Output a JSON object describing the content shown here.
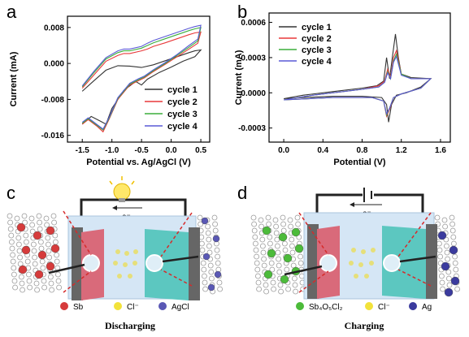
{
  "panels": {
    "a": {
      "letter": "a"
    },
    "b": {
      "letter": "b"
    },
    "c": {
      "letter": "c",
      "caption": "Discharging",
      "electron": "e⁻",
      "legend": [
        "Sb",
        "Cl⁻",
        "AgCl"
      ]
    },
    "d": {
      "letter": "d",
      "caption": "Charging",
      "electron": "e⁻",
      "legend": [
        "Sb₄O₅Cl₂",
        "Cl⁻",
        "Ag"
      ]
    }
  },
  "colors": {
    "cycle1": "#333333",
    "cycle2": "#e8393a",
    "cycle3": "#3cae3c",
    "cycle4": "#5a5ad6",
    "sb": "#d63b3b",
    "cl": "#f2e23a",
    "agcl": "#5a58b5",
    "sb4o5cl2": "#4cbb3a",
    "ag": "#3b3b9e",
    "electrode_red": "#d96a7a",
    "electrode_teal": "#5cc7c0",
    "electrolyte": "#d5e6f5"
  },
  "chart_data": [
    {
      "type": "line",
      "xlabel": "Potential vs. Ag/AgCl (V)",
      "ylabel": "Current (mA)",
      "xlim": [
        -1.75,
        0.65
      ],
      "ylim": [
        -0.0175,
        0.0105
      ],
      "xticks": [
        "-1.5",
        "-1.0",
        "-0.5",
        "0.0",
        "0.5"
      ],
      "xtick_values": [
        -1.5,
        -1.0,
        -0.5,
        0.0,
        0.5
      ],
      "yticks": [
        "0.008",
        "0.000",
        "-0.008",
        "-0.016"
      ],
      "ytick_values": [
        0.008,
        0.0,
        -0.008,
        -0.016
      ],
      "legend_position": "bottom-right",
      "series": [
        {
          "name": "cycle 1",
          "color": "#333333",
          "anodic": [
            [
              -1.5,
              -0.0062
            ],
            [
              -1.3,
              -0.0038
            ],
            [
              -1.1,
              -0.0015
            ],
            [
              -0.9,
              -0.0005
            ],
            [
              -0.7,
              -0.0006
            ],
            [
              -0.5,
              -0.0009
            ],
            [
              -0.3,
              -0.0003
            ],
            [
              -0.1,
              0.0006
            ],
            [
              0.1,
              0.0015
            ],
            [
              0.3,
              0.0024
            ],
            [
              0.4,
              0.0028
            ],
            [
              0.5,
              0.003
            ]
          ],
          "cathodic": [
            [
              0.5,
              0.003
            ],
            [
              0.4,
              0.0015
            ],
            [
              0.2,
              0.0005
            ],
            [
              0.0,
              -0.0008
            ],
            [
              -0.2,
              -0.002
            ],
            [
              -0.4,
              -0.0035
            ],
            [
              -0.5,
              -0.0048
            ],
            [
              -0.6,
              -0.004
            ],
            [
              -0.8,
              -0.006
            ],
            [
              -1.0,
              -0.01
            ],
            [
              -1.1,
              -0.0135
            ],
            [
              -1.2,
              -0.0128
            ],
            [
              -1.35,
              -0.0118
            ],
            [
              -1.5,
              -0.0135
            ]
          ]
        },
        {
          "name": "cycle 2",
          "color": "#e8393a",
          "anodic": [
            [
              -1.5,
              -0.0055
            ],
            [
              -1.3,
              -0.0025
            ],
            [
              -1.1,
              0.0005
            ],
            [
              -0.9,
              0.0018
            ],
            [
              -0.8,
              0.0022
            ],
            [
              -0.7,
              0.0022
            ],
            [
              -0.5,
              0.0028
            ],
            [
              -0.4,
              0.0032
            ],
            [
              -0.3,
              0.0038
            ],
            [
              -0.1,
              0.0046
            ],
            [
              0.1,
              0.0055
            ],
            [
              0.3,
              0.0064
            ],
            [
              0.4,
              0.0068
            ],
            [
              0.5,
              0.007
            ]
          ],
          "cathodic": [
            [
              0.5,
              0.007
            ],
            [
              0.45,
              0.0045
            ],
            [
              0.3,
              0.0032
            ],
            [
              0.1,
              0.0015
            ],
            [
              -0.1,
              -0.0002
            ],
            [
              -0.3,
              -0.0018
            ],
            [
              -0.45,
              -0.0032
            ],
            [
              -0.55,
              -0.0038
            ],
            [
              -0.7,
              -0.0048
            ],
            [
              -0.9,
              -0.008
            ],
            [
              -1.05,
              -0.0125
            ],
            [
              -1.15,
              -0.0152
            ],
            [
              -1.25,
              -0.014
            ],
            [
              -1.4,
              -0.0125
            ],
            [
              -1.5,
              -0.0135
            ]
          ]
        },
        {
          "name": "cycle 3",
          "color": "#3cae3c",
          "anodic": [
            [
              -1.5,
              -0.0052
            ],
            [
              -1.3,
              -0.002
            ],
            [
              -1.1,
              0.001
            ],
            [
              -0.9,
              0.0024
            ],
            [
              -0.8,
              0.0028
            ],
            [
              -0.7,
              0.0028
            ],
            [
              -0.5,
              0.0034
            ],
            [
              -0.4,
              0.004
            ],
            [
              -0.3,
              0.0046
            ],
            [
              -0.1,
              0.0055
            ],
            [
              0.1,
              0.0064
            ],
            [
              0.3,
              0.0073
            ],
            [
              0.4,
              0.0077
            ],
            [
              0.5,
              0.008
            ]
          ],
          "cathodic": [
            [
              0.5,
              0.008
            ],
            [
              0.45,
              0.005
            ],
            [
              0.3,
              0.0036
            ],
            [
              0.1,
              0.0018
            ],
            [
              -0.1,
              0.0
            ],
            [
              -0.3,
              -0.0016
            ],
            [
              -0.45,
              -0.003
            ],
            [
              -0.55,
              -0.0036
            ],
            [
              -0.7,
              -0.0046
            ],
            [
              -0.9,
              -0.0078
            ],
            [
              -1.05,
              -0.0123
            ],
            [
              -1.15,
              -0.0148
            ],
            [
              -1.25,
              -0.0138
            ],
            [
              -1.4,
              -0.0123
            ],
            [
              -1.5,
              -0.0133
            ]
          ]
        },
        {
          "name": "cycle 4",
          "color": "#5a5ad6",
          "anodic": [
            [
              -1.5,
              -0.005
            ],
            [
              -1.3,
              -0.0017
            ],
            [
              -1.1,
              0.0013
            ],
            [
              -0.9,
              0.0028
            ],
            [
              -0.8,
              0.0032
            ],
            [
              -0.7,
              0.0032
            ],
            [
              -0.5,
              0.0038
            ],
            [
              -0.4,
              0.0045
            ],
            [
              -0.3,
              0.0051
            ],
            [
              -0.1,
              0.006
            ],
            [
              0.1,
              0.0069
            ],
            [
              0.3,
              0.0078
            ],
            [
              0.4,
              0.0082
            ],
            [
              0.5,
              0.0085
            ]
          ],
          "cathodic": [
            [
              0.5,
              0.0085
            ],
            [
              0.45,
              0.0054
            ],
            [
              0.3,
              0.004
            ],
            [
              0.1,
              0.002
            ],
            [
              -0.1,
              0.0002
            ],
            [
              -0.3,
              -0.0014
            ],
            [
              -0.45,
              -0.0028
            ],
            [
              -0.55,
              -0.0034
            ],
            [
              -0.7,
              -0.0044
            ],
            [
              -0.9,
              -0.0076
            ],
            [
              -1.05,
              -0.0121
            ],
            [
              -1.15,
              -0.0146
            ],
            [
              -1.25,
              -0.0136
            ],
            [
              -1.4,
              -0.0121
            ],
            [
              -1.5,
              -0.0131
            ]
          ]
        }
      ]
    },
    {
      "type": "line",
      "xlabel": "Potential (V)",
      "ylabel": "Current (mA)",
      "xlim": [
        -0.15,
        1.7
      ],
      "ylim": [
        -0.00042,
        0.00068
      ],
      "xticks": [
        "0.0",
        "0.4",
        "0.8",
        "1.2",
        "1.6"
      ],
      "xtick_values": [
        0.0,
        0.4,
        0.8,
        1.2,
        1.6
      ],
      "yticks": [
        "0.0006",
        "0.0003",
        "0.0000",
        "-0.0003"
      ],
      "ytick_values": [
        0.0006,
        0.0003,
        0.0,
        -0.0003
      ],
      "legend_position": "top-left",
      "series": [
        {
          "name": "cycle 1",
          "color": "#333333",
          "anodic": [
            [
              0.0,
              -5e-05
            ],
            [
              0.2,
              -2e-05
            ],
            [
              0.5,
              1e-05
            ],
            [
              0.8,
              4e-05
            ],
            [
              0.95,
              6e-05
            ],
            [
              1.02,
              0.0001
            ],
            [
              1.05,
              0.0003
            ],
            [
              1.08,
              0.00012
            ],
            [
              1.1,
              0.00025
            ],
            [
              1.14,
              0.0005
            ],
            [
              1.17,
              0.0003
            ],
            [
              1.2,
              0.00016
            ],
            [
              1.3,
              0.00013
            ],
            [
              1.5,
              0.00012
            ]
          ],
          "cathodic": [
            [
              1.5,
              0.00012
            ],
            [
              1.4,
              5e-05
            ],
            [
              1.25,
              0.0
            ],
            [
              1.15,
              -2e-05
            ],
            [
              1.1,
              -0.0001
            ],
            [
              1.07,
              -0.00025
            ],
            [
              1.05,
              -0.0001
            ],
            [
              1.0,
              -4e-05
            ],
            [
              0.8,
              -3e-05
            ],
            [
              0.5,
              -3e-05
            ],
            [
              0.2,
              -4e-05
            ],
            [
              0.0,
              -5e-05
            ]
          ]
        },
        {
          "name": "cycle 2",
          "color": "#e8393a",
          "anodic": [
            [
              0.0,
              -6e-05
            ],
            [
              0.3,
              -2e-05
            ],
            [
              0.8,
              3e-05
            ],
            [
              0.97,
              6e-05
            ],
            [
              1.03,
              0.0001
            ],
            [
              1.06,
              0.0002
            ],
            [
              1.09,
              0.00013
            ],
            [
              1.12,
              0.0003
            ],
            [
              1.15,
              0.00036
            ],
            [
              1.2,
              0.00016
            ],
            [
              1.3,
              0.00012
            ],
            [
              1.5,
              0.00012
            ]
          ],
          "cathodic": [
            [
              1.5,
              0.00012
            ],
            [
              1.4,
              4e-05
            ],
            [
              1.2,
              -1e-05
            ],
            [
              1.12,
              -4e-05
            ],
            [
              1.08,
              -0.00014
            ],
            [
              1.05,
              -0.0002
            ],
            [
              1.02,
              -7e-05
            ],
            [
              0.9,
              -4e-05
            ],
            [
              0.5,
              -4e-05
            ],
            [
              0.0,
              -6e-05
            ]
          ]
        },
        {
          "name": "cycle 3",
          "color": "#3cae3c",
          "anodic": [
            [
              0.0,
              -6e-05
            ],
            [
              0.3,
              -2e-05
            ],
            [
              0.8,
              3e-05
            ],
            [
              0.97,
              5e-05
            ],
            [
              1.03,
              9e-05
            ],
            [
              1.06,
              0.00018
            ],
            [
              1.09,
              0.00012
            ],
            [
              1.12,
              0.00027
            ],
            [
              1.15,
              0.00033
            ],
            [
              1.2,
              0.00016
            ],
            [
              1.3,
              0.00012
            ],
            [
              1.5,
              0.00012
            ]
          ],
          "cathodic": [
            [
              1.5,
              0.00012
            ],
            [
              1.4,
              4e-05
            ],
            [
              1.2,
              -1e-05
            ],
            [
              1.12,
              -4e-05
            ],
            [
              1.08,
              -0.00013
            ],
            [
              1.05,
              -0.00019
            ],
            [
              1.02,
              -7e-05
            ],
            [
              0.9,
              -4e-05
            ],
            [
              0.5,
              -4e-05
            ],
            [
              0.0,
              -6e-05
            ]
          ]
        },
        {
          "name": "cycle 4",
          "color": "#5a5ad6",
          "anodic": [
            [
              0.0,
              -6e-05
            ],
            [
              0.3,
              -2e-05
            ],
            [
              0.8,
              3e-05
            ],
            [
              0.97,
              5e-05
            ],
            [
              1.03,
              9e-05
            ],
            [
              1.06,
              0.00017
            ],
            [
              1.09,
              0.00012
            ],
            [
              1.12,
              0.00026
            ],
            [
              1.15,
              0.00031
            ],
            [
              1.2,
              0.00015
            ],
            [
              1.3,
              0.00012
            ],
            [
              1.5,
              0.00012
            ]
          ],
          "cathodic": [
            [
              1.5,
              0.00012
            ],
            [
              1.4,
              4e-05
            ],
            [
              1.2,
              -1e-05
            ],
            [
              1.12,
              -4e-05
            ],
            [
              1.08,
              -0.00013
            ],
            [
              1.05,
              -0.00018
            ],
            [
              1.02,
              -7e-05
            ],
            [
              0.9,
              -4e-05
            ],
            [
              0.5,
              -4e-05
            ],
            [
              0.0,
              -6e-05
            ]
          ]
        }
      ]
    }
  ]
}
